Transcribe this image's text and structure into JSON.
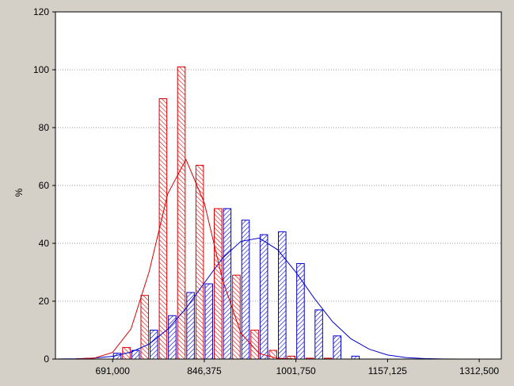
{
  "chart_data": {
    "type": "histogram",
    "y_label": "%",
    "bins": [
      691000,
      722075,
      753150,
      784225,
      815300,
      846375,
      877450,
      908525,
      939600,
      970675,
      1001750,
      1032825,
      1063900,
      1094975,
      1126050
    ],
    "series": [
      {
        "color": "#0000cc",
        "values": [
          2,
          3,
          10,
          15,
          23,
          26,
          52,
          48,
          43,
          44,
          33,
          17,
          8,
          1
        ]
      },
      {
        "color": "#dd0000",
        "values": [
          4,
          22,
          90,
          101,
          67,
          52,
          29,
          10,
          3,
          1,
          0.3,
          0.3,
          0,
          0
        ]
      }
    ],
    "fits": [
      {
        "color": "#0000cc",
        "x": [
          597775,
          628850,
          659925,
          691000,
          722075,
          753150,
          784225,
          815300,
          846375,
          877450,
          908525,
          939600,
          970675,
          1001750,
          1032825,
          1063900,
          1094975,
          1126050,
          1157125,
          1188200,
          1219275,
          1250350,
          1281425,
          1312500,
          1343725
        ],
        "values": [
          0.03,
          0.1,
          0.34,
          0.95,
          2.4,
          5.2,
          10.3,
          17.5,
          26.3,
          34.9,
          40.7,
          41.8,
          37.8,
          30,
          21,
          12.9,
          7,
          3.4,
          1.4,
          0.5,
          0.17,
          0.05,
          0.01,
          0,
          0
        ]
      },
      {
        "color": "#dd0000",
        "x": [
          597775,
          628850,
          659925,
          691000,
          722075,
          753150,
          784225,
          815300,
          846375,
          877450,
          908525,
          939600,
          970675,
          1001750,
          1032825,
          1063900,
          1094975,
          1126050,
          1157125,
          1188200,
          1219275,
          1250350,
          1281425,
          1312500,
          1343725
        ],
        "values": [
          0,
          0.03,
          0.33,
          2.3,
          10.4,
          30.4,
          57,
          69,
          54,
          27.3,
          8.9,
          1.9,
          0.26,
          0.02,
          0,
          0,
          0,
          0,
          0,
          0,
          0,
          0,
          0,
          0,
          0
        ]
      }
    ],
    "xlim": [
      594000,
      1350000
    ],
    "xticks": [
      {
        "value": 691000,
        "label": "691,000"
      },
      {
        "value": 846375,
        "label": "846,375"
      },
      {
        "value": 1001750,
        "label": "1001,750"
      },
      {
        "value": 1157125,
        "label": "1157,125"
      },
      {
        "value": 1312500,
        "label": "1312,500"
      }
    ],
    "ylim": [
      0,
      120
    ],
    "yticks": [
      0,
      20,
      40,
      60,
      80,
      100,
      120
    ],
    "grid": true
  }
}
